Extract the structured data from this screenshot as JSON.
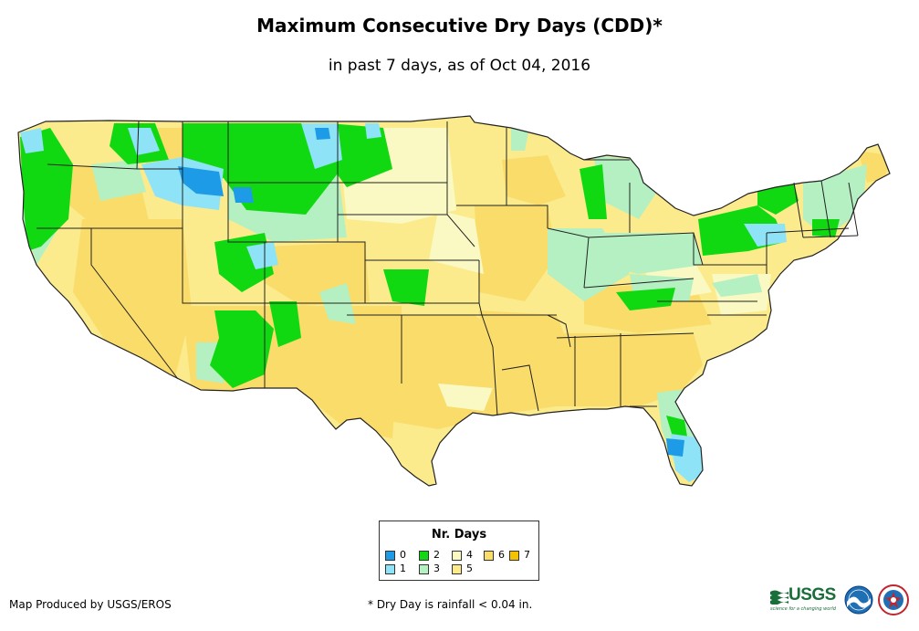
{
  "header": {
    "title": "Maximum Consecutive Dry Days (CDD)*",
    "subtitle": "in past 7 days, as of Oct 04, 2016"
  },
  "legend": {
    "title": "Nr. Days",
    "items": [
      {
        "label": "0",
        "color": "#1e9be6"
      },
      {
        "label": "1",
        "color": "#8fe3f7"
      },
      {
        "label": "2",
        "color": "#11d911"
      },
      {
        "label": "3",
        "color": "#b5f0c2"
      },
      {
        "label": "4",
        "color": "#fbf9c3"
      },
      {
        "label": "5",
        "color": "#fbeb8c"
      },
      {
        "label": "6",
        "color": "#fadc6a"
      },
      {
        "label": "7",
        "color": "#f5c200"
      }
    ]
  },
  "footer": {
    "credit": "Map Produced by USGS/EROS",
    "footnote": "* Dry Day is rainfall < 0.04 in."
  },
  "logos": {
    "usgs_text": "USGS",
    "usgs_tagline": "science for a changing world"
  },
  "colors": {
    "state_border": "#222222",
    "background": "#ffffff"
  }
}
